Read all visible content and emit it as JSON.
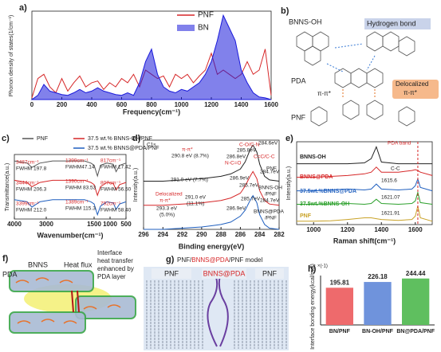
{
  "chart_data": [
    {
      "type": "line",
      "panel_label": "a)",
      "ylabel": "Phonon density of states(1/cm⁻¹)",
      "xlabel": "Frequency(cm⁻¹)",
      "x": [
        0,
        40,
        80,
        120,
        160,
        200,
        240,
        280,
        320,
        360,
        400,
        440,
        480,
        520,
        560,
        600,
        640,
        680,
        720,
        760,
        800,
        840,
        880,
        920,
        960,
        1000,
        1040,
        1080,
        1120,
        1160,
        1200,
        1240,
        1280,
        1320,
        1360,
        1400,
        1440,
        1480,
        1520,
        1560,
        1600
      ],
      "xlim": [
        0,
        1600
      ],
      "xticks": [
        0,
        200,
        400,
        600,
        800,
        1000,
        1200,
        1400,
        1600
      ],
      "ylim": [
        0,
        1.05
      ],
      "series": [
        {
          "name": "PNF",
          "color": "#d62728",
          "style": "line",
          "values": [
            0.02,
            0.25,
            0.3,
            0.15,
            0.08,
            0.25,
            0.1,
            0.2,
            0.28,
            0.15,
            0.2,
            0.22,
            0.12,
            0.2,
            0.15,
            0.25,
            0.2,
            0.3,
            0.15,
            0.35,
            0.3,
            0.25,
            0.28,
            0.15,
            0.3,
            0.25,
            0.3,
            0.2,
            0.28,
            0.35,
            0.55,
            0.3,
            0.35,
            0.3,
            0.25,
            0.3,
            0.45,
            0.3,
            0.35,
            0.6,
            0.05
          ]
        },
        {
          "name": "BN",
          "color": "#1a1adb",
          "style": "area",
          "values": [
            0,
            0.05,
            0.18,
            0.1,
            0.08,
            0.06,
            0.05,
            0.08,
            0.12,
            0.08,
            0.1,
            0.14,
            0.1,
            0.08,
            0.06,
            0.05,
            0.08,
            0.05,
            0.2,
            0.45,
            0.6,
            0.3,
            0.15,
            0.1,
            0.08,
            0.12,
            0.1,
            0.15,
            0.2,
            0.3,
            0.45,
            0.7,
            1.0,
            0.85,
            0.7,
            0.35,
            0.2,
            0.08,
            0.03,
            0.02,
            0
          ]
        }
      ]
    },
    {
      "type": "line",
      "panel_label": "c)",
      "ylabel": "Transmittance(a.u.)",
      "xlabel": "Wavenumber(cm⁻¹)",
      "x": [
        4000,
        3600,
        3450,
        3200,
        2800,
        1800,
        1600,
        1500,
        1395,
        1300,
        1100,
        900,
        810,
        700,
        500
      ],
      "xlim": [
        4000,
        500
      ],
      "xticks": [
        4000,
        3000,
        1500,
        1000,
        500
      ],
      "ylim": [
        0,
        3
      ],
      "series": [
        {
          "name": "PNF",
          "color": "#555555",
          "style": "line",
          "values": [
            2.7,
            2.6,
            2.4,
            2.6,
            2.7,
            2.7,
            2.6,
            2.5,
            2.0,
            2.5,
            2.6,
            2.55,
            2.2,
            2.5,
            2.6
          ]
        },
        {
          "name": "37.5 wt.% BNNS-OH/PNF",
          "color": "#d62728",
          "style": "line",
          "values": [
            1.8,
            1.7,
            1.5,
            1.7,
            1.8,
            1.8,
            1.7,
            1.6,
            1.1,
            1.5,
            1.7,
            1.65,
            1.35,
            1.6,
            1.7
          ]
        },
        {
          "name": "37.5 wt.% BNNS@PDA/PNF",
          "color": "#1f5fbf",
          "style": "line",
          "values": [
            0.9,
            0.8,
            0.55,
            0.8,
            0.9,
            0.9,
            0.8,
            0.7,
            0.2,
            0.6,
            0.8,
            0.75,
            0.45,
            0.7,
            0.8
          ]
        }
      ],
      "annotations": [
        "3487cm⁻¹",
        "FWHM 197.8",
        "1399cm⁻¹",
        "FWHM47.14",
        "817cm⁻¹",
        "FWHM 17.42",
        "3444cm⁻¹",
        "FWHM 206.3",
        "1390cm⁻¹",
        "FWHM 83.53",
        "807cm⁻¹",
        "FWHM 56.50",
        "3399cm⁻¹",
        "FWHM 212.0",
        "1389cm⁻¹",
        "FWHM 115.3",
        "792cm⁻¹",
        "FWHM 58.40"
      ]
    },
    {
      "type": "line",
      "panel_label": "d)",
      "ylabel": "Intensity(a.u.)",
      "xlabel": "Binding energy(eV)",
      "x": [
        296,
        294,
        292,
        290,
        289,
        288,
        287,
        286,
        285.5,
        285,
        284.7,
        284.3,
        284,
        283.5,
        283,
        282
      ],
      "xlim": [
        296,
        282
      ],
      "xticks": [
        296,
        294,
        292,
        290,
        288,
        286,
        284,
        282
      ],
      "ylim": [
        0,
        3.7
      ],
      "series": [
        {
          "color": "#222222",
          "style": "line",
          "values": [
            2.0,
            2.0,
            2.05,
            2.1,
            2.15,
            2.2,
            2.3,
            2.5,
            2.8,
            3.3,
            3.5,
            3.2,
            2.7,
            2.2,
            2.05,
            2.0
          ]
        },
        {
          "color": "#d62728",
          "style": "line",
          "values": [
            1.0,
            1.0,
            1.05,
            1.1,
            1.15,
            1.2,
            1.3,
            1.5,
            1.8,
            2.2,
            2.4,
            2.1,
            1.6,
            1.2,
            1.05,
            1.0
          ]
        },
        {
          "color": "#1f5fbf",
          "style": "line",
          "values": [
            0,
            0,
            0.05,
            0.1,
            0.15,
            0.2,
            0.3,
            0.55,
            0.8,
            1.2,
            1.4,
            1.1,
            0.6,
            0.2,
            0.05,
            0
          ]
        }
      ],
      "annotations": [
        "C1s",
        "π-π*",
        "290.8 eV (8.7%)",
        "C-O/C-N",
        "285.8eV",
        "284.6eV",
        "286.8eV",
        "N-C=O",
        "C=C/C-C",
        "PNF",
        "291.0 eV (7.7%)",
        "286.9eV",
        "285.7eV",
        "284.7eV",
        "BNNS-OH",
        "/PNF",
        "Delocalized",
        "π-π*",
        "293.3 eV",
        "(5.0%)",
        "291.0 eV",
        "(11.1%)",
        "286.9eV",
        "285.7eV",
        "284.7eV",
        "BNNS@PDA",
        "/PNF"
      ]
    },
    {
      "type": "line",
      "panel_label": "e)",
      "ylabel": "Intensity(a.u.)",
      "xlabel": "Raman shift(cm⁻¹)",
      "x": [
        900,
        1000,
        1100,
        1200,
        1300,
        1340,
        1370,
        1400,
        1500,
        1580,
        1600,
        1615,
        1630,
        1700
      ],
      "xlim": [
        900,
        1700
      ],
      "xticks": [
        1000,
        1200,
        1400,
        1600
      ],
      "ylim": [
        0.4,
        5.3
      ],
      "series": [
        {
          "name": "BNNS-OH",
          "color": "#222222",
          "style": "line",
          "values": [
            4.0,
            4.0,
            4.0,
            4.0,
            4.05,
            4.3,
            5.0,
            4.1,
            4.0,
            4.0,
            4.0,
            4.0,
            4.0,
            4.0
          ]
        },
        {
          "name": "BNNS@PDA",
          "color": "#d62728",
          "style": "line",
          "values": [
            3.2,
            3.2,
            3.25,
            3.3,
            3.4,
            3.5,
            3.8,
            3.5,
            3.5,
            3.6,
            3.65,
            3.6,
            3.5,
            3.3
          ]
        },
        {
          "name": "37.5wt.%BNNS@PDA",
          "color": "#1f5fbf",
          "style": "line",
          "values": [
            2.4,
            2.4,
            2.45,
            2.5,
            2.45,
            2.5,
            2.8,
            2.5,
            2.45,
            2.5,
            2.7,
            3.1,
            2.6,
            2.4
          ]
        },
        {
          "name": "37.5wt.%BNNS-OH",
          "color": "#2ca02c",
          "style": "line",
          "values": [
            1.6,
            1.6,
            1.62,
            1.65,
            1.6,
            1.65,
            1.9,
            1.65,
            1.6,
            1.65,
            1.8,
            2.3,
            1.7,
            1.6
          ]
        },
        {
          "name": "PNF",
          "color": "#c9a227",
          "style": "line",
          "values": [
            0.6,
            0.6,
            0.62,
            0.7,
            0.8,
            0.8,
            0.75,
            0.7,
            0.65,
            0.7,
            0.9,
            1.5,
            0.8,
            0.6
          ]
        }
      ],
      "annotations": [
        "PDA band",
        "C-C",
        "1615.6",
        "1621.07",
        "1621.91"
      ]
    },
    {
      "type": "bar",
      "panel_label": "h)",
      "ylabel": "Interface bonding energy(kcal/mol)",
      "y_axis_note": "×(-1)",
      "categories": [
        "BN/PNF",
        "BN-OH/PNF",
        "BN@PDA/PNF"
      ],
      "values": [
        195.81,
        226.18,
        244.44
      ],
      "colors": [
        "#ee6a6c",
        "#6f93dc",
        "#5fbf5f"
      ],
      "ylim": [
        0,
        260
      ]
    }
  ],
  "diagram_b": {
    "label": "b)",
    "texts": [
      "BNNS-OH",
      "Hydrogen bond",
      "PDA",
      "PNF",
      "π-π*",
      "Delocalized",
      "π-π*"
    ]
  },
  "diagram_f": {
    "label": "f)",
    "texts": [
      "BNNS",
      "Heat flux",
      "PDA",
      "Interface",
      "heat transfer",
      "enhanced by",
      "PDA layer"
    ]
  },
  "diagram_g": {
    "label": "g)",
    "title": [
      "PNF/",
      "BNNS@PDA",
      "/PNF model"
    ],
    "regions": [
      "PNF",
      "BNNS@PDA",
      "PNF"
    ]
  }
}
